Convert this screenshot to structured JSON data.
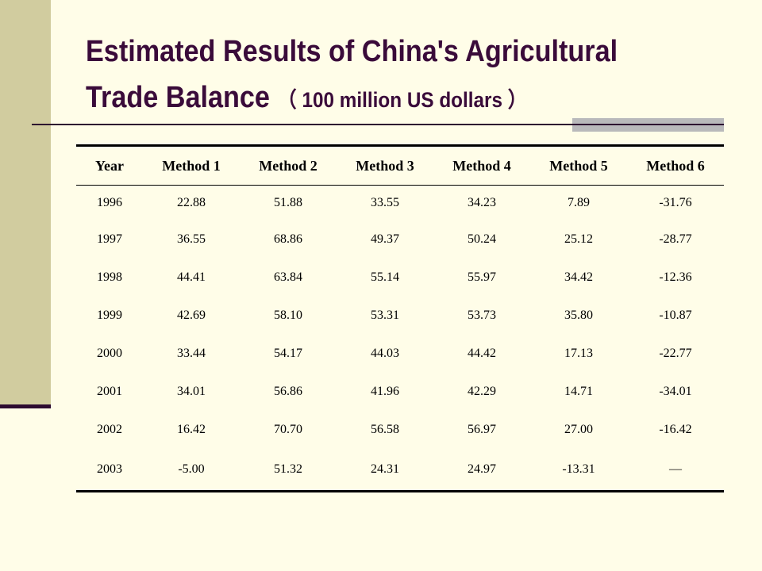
{
  "title": {
    "line1": "Estimated Results of China's Agricultural",
    "line2_main": "Trade Balance",
    "line2_unit": "（ 100 million US dollars ）"
  },
  "table": {
    "headers": [
      "Year",
      "Method 1",
      "Method 2",
      "Method 3",
      "Method 4",
      "Method 5",
      "Method 6"
    ],
    "rows": [
      [
        "1996",
        "22.88",
        "51.88",
        "33.55",
        "34.23",
        "7.89",
        "-31.76"
      ],
      [
        "1997",
        "36.55",
        "68.86",
        "49.37",
        "50.24",
        "25.12",
        "-28.77"
      ],
      [
        "1998",
        "44.41",
        "63.84",
        "55.14",
        "55.97",
        "34.42",
        "-12.36"
      ],
      [
        "1999",
        "42.69",
        "58.10",
        "53.31",
        "53.73",
        "35.80",
        "-10.87"
      ],
      [
        "2000",
        "33.44",
        "54.17",
        "44.03",
        "44.42",
        "17.13",
        "-22.77"
      ],
      [
        "2001",
        "34.01",
        "56.86",
        "41.96",
        "42.29",
        "14.71",
        "-34.01"
      ],
      [
        "2002",
        "16.42",
        "70.70",
        "56.58",
        "56.97",
        "27.00",
        "-16.42"
      ],
      [
        "2003",
        "-5.00",
        "51.32",
        "24.31",
        "24.97",
        "-13.31",
        "—"
      ]
    ]
  },
  "colors": {
    "background": "#fffde8",
    "sidebar": "#d1cc9f",
    "title_text": "#3a0b3a",
    "rule": "#2d0b30",
    "accent_block": "#b9b9bb"
  }
}
